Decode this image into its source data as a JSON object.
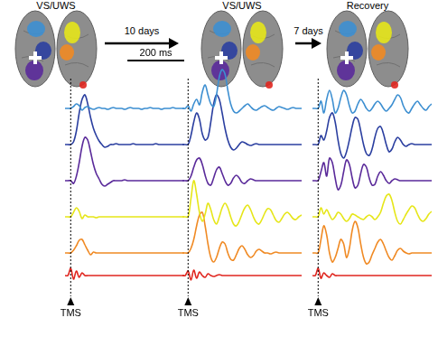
{
  "transitions": [
    "10 days",
    "7 days"
  ],
  "stimulus": {
    "label": "TMS",
    "time": 0
  },
  "scale_bar": {
    "value": 200,
    "label": "200 ms"
  },
  "chart_data": [
    {
      "type": "line",
      "title": "VS/UWS",
      "xlim": [
        -20,
        400
      ],
      "grid": false,
      "tick_labels": false,
      "x": [
        -20,
        -10,
        0,
        10,
        20,
        30,
        40,
        50,
        60,
        70,
        80,
        90,
        100,
        110,
        120,
        130,
        140,
        150,
        160,
        170,
        180,
        190,
        200,
        210,
        220,
        230,
        240,
        250,
        260,
        270,
        280,
        290,
        300,
        310,
        320,
        330,
        340,
        350,
        360,
        370,
        380,
        390,
        400
      ],
      "series": [
        {
          "color": "#3d8fd1",
          "ylim": [
            -20,
            4.5
          ],
          "values": [
            0,
            0,
            0,
            0.2,
            0.5,
            0.3,
            -0.2,
            0.1,
            0.2,
            0,
            -0.1,
            0,
            0.1,
            0,
            0,
            -0.1,
            0,
            0.1,
            0,
            0,
            0,
            -0.1,
            0,
            0.1,
            0,
            0,
            0,
            -0.1,
            0,
            0,
            0.1,
            0,
            0,
            0,
            -0.1,
            0,
            0,
            0,
            0.1,
            0,
            0,
            0,
            0
          ]
        },
        {
          "color": "#2b3fa0",
          "ylim": [
            -16,
            8.5
          ],
          "values": [
            0,
            0,
            0,
            0.3,
            1.5,
            3.5,
            5,
            5.5,
            4.5,
            3,
            1.8,
            1,
            0.4,
            0,
            -0.3,
            -0.2,
            0,
            0,
            0.1,
            0,
            0,
            0,
            0,
            0,
            0.1,
            0,
            0,
            0,
            0,
            0,
            0,
            0,
            0.1,
            0,
            0,
            0,
            0,
            0,
            0,
            0,
            0,
            0,
            0
          ]
        },
        {
          "color": "#5a2a9a",
          "ylim": [
            -12,
            12.5
          ],
          "values": [
            0,
            0,
            0,
            -0.3,
            0.5,
            2,
            3.8,
            4.8,
            4.5,
            3.2,
            1.8,
            0.8,
            0.2,
            -0.4,
            -0.6,
            -0.4,
            -0.2,
            0,
            0,
            0,
            0,
            0.1,
            0,
            0,
            0,
            0,
            0,
            0,
            0,
            0,
            0,
            0,
            0,
            0,
            0,
            0,
            0,
            0,
            0,
            0,
            0,
            0,
            0
          ]
        },
        {
          "color": "#e6e619",
          "ylim": [
            -8,
            16.5
          ],
          "values": [
            0,
            0,
            0,
            0.5,
            1,
            0.6,
            -0.2,
            0.2,
            0,
            0,
            0,
            -0.1,
            0,
            0,
            0,
            0,
            0,
            0,
            0,
            0,
            0,
            0,
            0,
            0,
            0,
            0,
            0,
            0,
            0,
            0,
            0,
            0,
            0,
            0,
            0,
            0,
            0,
            0,
            0,
            0,
            0,
            0,
            0
          ]
        },
        {
          "color": "#f08a24",
          "ylim": [
            -4,
            20.5
          ],
          "values": [
            0,
            0,
            0,
            0.3,
            0.8,
            1.4,
            1.5,
            0.9,
            0.3,
            -0.2,
            0.1,
            0,
            0,
            0,
            0,
            0,
            0,
            0,
            0,
            0,
            0,
            0,
            0,
            0,
            0,
            0,
            0,
            0,
            0,
            0,
            0,
            0,
            0,
            0,
            0,
            0,
            0,
            0,
            0,
            0,
            0,
            0,
            0
          ]
        },
        {
          "color": "#e0261f",
          "ylim": [
            -1.5,
            23
          ],
          "values": [
            0,
            0,
            0.8,
            -0.4,
            0.5,
            -0.2,
            0.3,
            0,
            0,
            0,
            0,
            0,
            0,
            0,
            0,
            0,
            0,
            0,
            0,
            0,
            0,
            0,
            0,
            0,
            0,
            0,
            0,
            0,
            0,
            0,
            0,
            0,
            0,
            0,
            0,
            0,
            0,
            0,
            0,
            0,
            0,
            0,
            0
          ]
        }
      ]
    },
    {
      "type": "line",
      "title": "VS/UWS",
      "xlim": [
        -20,
        400
      ],
      "grid": false,
      "tick_labels": false,
      "x": [
        -20,
        -10,
        0,
        10,
        20,
        30,
        40,
        50,
        60,
        70,
        80,
        90,
        100,
        110,
        120,
        130,
        140,
        150,
        160,
        170,
        180,
        190,
        200,
        210,
        220,
        230,
        240,
        250,
        260,
        270,
        280,
        290,
        300,
        310,
        320,
        330,
        340,
        350,
        360,
        370,
        380,
        390,
        400
      ],
      "series": [
        {
          "color": "#3d8fd1",
          "ylim": [
            -20,
            4.5
          ],
          "values": [
            0,
            0,
            0.3,
            -0.3,
            0.5,
            1,
            0.4,
            1.8,
            2.6,
            1.5,
            0.5,
            0.2,
            1.5,
            3.5,
            4.3,
            3.8,
            2,
            0.5,
            -0.3,
            -0.5,
            -0.3,
            0,
            0.3,
            0.5,
            0.2,
            -0.1,
            -0.2,
            0,
            0.2,
            0.3,
            0.1,
            -0.1,
            -0.2,
            0,
            0.2,
            0.1,
            0,
            -0.1,
            0,
            0.1,
            0,
            0,
            0
          ]
        },
        {
          "color": "#2b3fa0",
          "ylim": [
            -16,
            8.5
          ],
          "values": [
            0,
            0,
            0,
            1,
            2.5,
            3.5,
            2.8,
            1.2,
            0.5,
            0.8,
            2.5,
            4.5,
            5.5,
            5,
            3.5,
            1.8,
            0.5,
            -0.3,
            -0.6,
            -0.4,
            0,
            0.3,
            0.2,
            0,
            -0.1,
            0,
            0.1,
            0,
            0,
            0,
            0,
            0,
            0,
            0,
            0,
            0,
            0,
            0,
            0,
            0,
            0,
            0,
            0
          ]
        },
        {
          "color": "#5a2a9a",
          "ylim": [
            -12,
            12.5
          ],
          "values": [
            0,
            0,
            0,
            0.5,
            1.5,
            2.3,
            2.5,
            1.8,
            0.6,
            -0.3,
            -0.5,
            0.3,
            1.2,
            1.5,
            0.8,
            0,
            -0.5,
            -0.3,
            0.3,
            0.6,
            0.3,
            -0.2,
            -0.3,
            0,
            0.2,
            0.1,
            0,
            0,
            0,
            0,
            0,
            0,
            0,
            0,
            0,
            0,
            0,
            0,
            0,
            0,
            0,
            0,
            0
          ]
        },
        {
          "color": "#e6e619",
          "ylim": [
            -8,
            16.5
          ],
          "values": [
            0,
            0,
            0,
            2,
            4,
            2.5,
            0.5,
            -0.5,
            0.3,
            1.5,
            0.8,
            -0.3,
            -0.8,
            0,
            1,
            1.5,
            1,
            0,
            -0.8,
            -1,
            -0.5,
            0.3,
            1,
            1.3,
            0.8,
            0,
            -0.6,
            -0.8,
            -0.3,
            0.4,
            0.9,
            0.8,
            0.2,
            -0.4,
            -0.6,
            -0.2,
            0.3,
            0.5,
            0.2,
            -0.2,
            -0.3,
            0,
            0.2
          ]
        },
        {
          "color": "#f08a24",
          "ylim": [
            -4,
            20.5
          ],
          "values": [
            0,
            0,
            0,
            0.5,
            1.5,
            3,
            4.2,
            4.5,
            3,
            1,
            -0.5,
            -1,
            -0.5,
            0.5,
            1.2,
            1,
            0,
            -0.7,
            -0.8,
            -0.2,
            0.5,
            0.8,
            0.4,
            -0.2,
            -0.5,
            -0.3,
            0.2,
            0.4,
            0.2,
            0,
            0,
            -0.1,
            0,
            0.1,
            0,
            0,
            0,
            0,
            0,
            0,
            0,
            0,
            0
          ]
        },
        {
          "color": "#e0261f",
          "ylim": [
            -1.5,
            23
          ],
          "values": [
            0,
            0,
            0.5,
            -0.5,
            0.6,
            -0.3,
            0.4,
            0,
            -0.2,
            0.2,
            0,
            -0.1,
            0,
            0.1,
            0,
            0,
            0,
            0,
            0,
            0,
            0,
            0,
            0,
            0,
            0,
            0,
            0,
            0,
            0,
            0,
            0,
            0,
            0,
            0,
            0,
            0,
            0,
            0,
            0,
            0,
            0,
            0,
            0
          ]
        }
      ]
    },
    {
      "type": "line",
      "title": "Recovery",
      "xlim": [
        -20,
        400
      ],
      "grid": false,
      "tick_labels": false,
      "x": [
        -20,
        -10,
        0,
        10,
        20,
        30,
        40,
        50,
        60,
        70,
        80,
        90,
        100,
        110,
        120,
        130,
        140,
        150,
        160,
        170,
        180,
        190,
        200,
        210,
        220,
        230,
        240,
        250,
        260,
        270,
        280,
        290,
        300,
        310,
        320,
        330,
        340,
        350,
        360,
        370,
        380,
        390,
        400
      ],
      "series": [
        {
          "color": "#3d8fd1",
          "ylim": [
            -20,
            4.5
          ],
          "values": [
            0,
            0,
            0,
            0.8,
            -0.5,
            1,
            2,
            1,
            -0.5,
            0,
            1.2,
            2,
            1.5,
            0.3,
            -0.5,
            -0.3,
            0.5,
            1,
            0.6,
            0,
            -0.3,
            0,
            0.5,
            0.8,
            0.5,
            0,
            -0.3,
            0,
            0.4,
            1,
            1.5,
            1.2,
            0.3,
            -0.3,
            -0.5,
            0,
            0.5,
            0.8,
            0.4,
            0,
            -0.2,
            0.2,
            0.5
          ]
        },
        {
          "color": "#2b3fa0",
          "ylim": [
            -16,
            8.5
          ],
          "values": [
            0,
            0,
            0,
            1,
            0.5,
            1.5,
            3,
            3.5,
            2.5,
            0.5,
            -1,
            -1.5,
            -0.8,
            0.5,
            2,
            3,
            2.8,
            1.5,
            0,
            -1,
            -1.2,
            -0.5,
            0.8,
            1.8,
            2,
            1.2,
            0,
            -0.8,
            -0.5,
            0.3,
            0.8,
            0.5,
            0,
            -0.2,
            0,
            0.1,
            0,
            0,
            0,
            0,
            0,
            0,
            0
          ]
        },
        {
          "color": "#5a2a9a",
          "ylim": [
            -12,
            12.5
          ],
          "values": [
            0,
            0,
            0,
            1,
            2,
            0.5,
            2.5,
            2,
            0.3,
            -1,
            -0.5,
            1,
            2.3,
            1.8,
            0.3,
            -0.8,
            -0.5,
            0.8,
            1.8,
            1.5,
            0.3,
            -0.5,
            -0.4,
            0.5,
            1,
            0.6,
            0,
            -0.3,
            0,
            0.2,
            0.1,
            0,
            0,
            0,
            0,
            0,
            0,
            0,
            0,
            0,
            0,
            0,
            0
          ]
        },
        {
          "color": "#e6e619",
          "ylim": [
            -8,
            16.5
          ],
          "values": [
            0,
            0,
            0,
            1,
            0.3,
            0.8,
            0.2,
            -0.3,
            0,
            0.5,
            0.3,
            -0.2,
            -0.5,
            -0.2,
            0.3,
            0.2,
            0,
            -0.2,
            -0.3,
            0,
            0.2,
            0,
            -0.3,
            0,
            0.5,
            1.5,
            2.3,
            2.5,
            1.8,
            0.5,
            -0.5,
            -0.8,
            -0.3,
            0.3,
            0.8,
            1.2,
            1,
            0.3,
            -0.3,
            -0.5,
            -0.2,
            0.3,
            0.6
          ]
        },
        {
          "color": "#f08a24",
          "ylim": [
            -4,
            20.5
          ],
          "values": [
            0,
            0,
            0,
            1.5,
            3,
            2,
            0,
            -1,
            -0.5,
            0.5,
            1.5,
            1,
            -0.5,
            0.5,
            2.5,
            3.5,
            2.8,
            1,
            -0.5,
            -1.2,
            -1,
            -0.2,
            0.5,
            1.2,
            1.5,
            1,
            0.2,
            -0.5,
            -0.8,
            -0.3,
            0.3,
            0.5,
            0.2,
            0,
            -0.1,
            0,
            0,
            0,
            0,
            0,
            0,
            0,
            0
          ]
        },
        {
          "color": "#e0261f",
          "ylim": [
            -1.5,
            23
          ],
          "values": [
            0,
            0,
            0.8,
            -0.3,
            0.3,
            0,
            -0.2,
            0.2,
            0,
            0,
            0,
            0,
            0,
            0,
            0,
            0,
            0,
            0,
            0,
            0,
            0,
            0,
            0,
            0,
            0,
            0,
            0,
            0,
            0,
            0,
            0,
            0,
            0,
            0,
            0,
            0,
            0,
            0,
            0,
            0,
            0,
            0,
            0
          ]
        }
      ]
    }
  ]
}
